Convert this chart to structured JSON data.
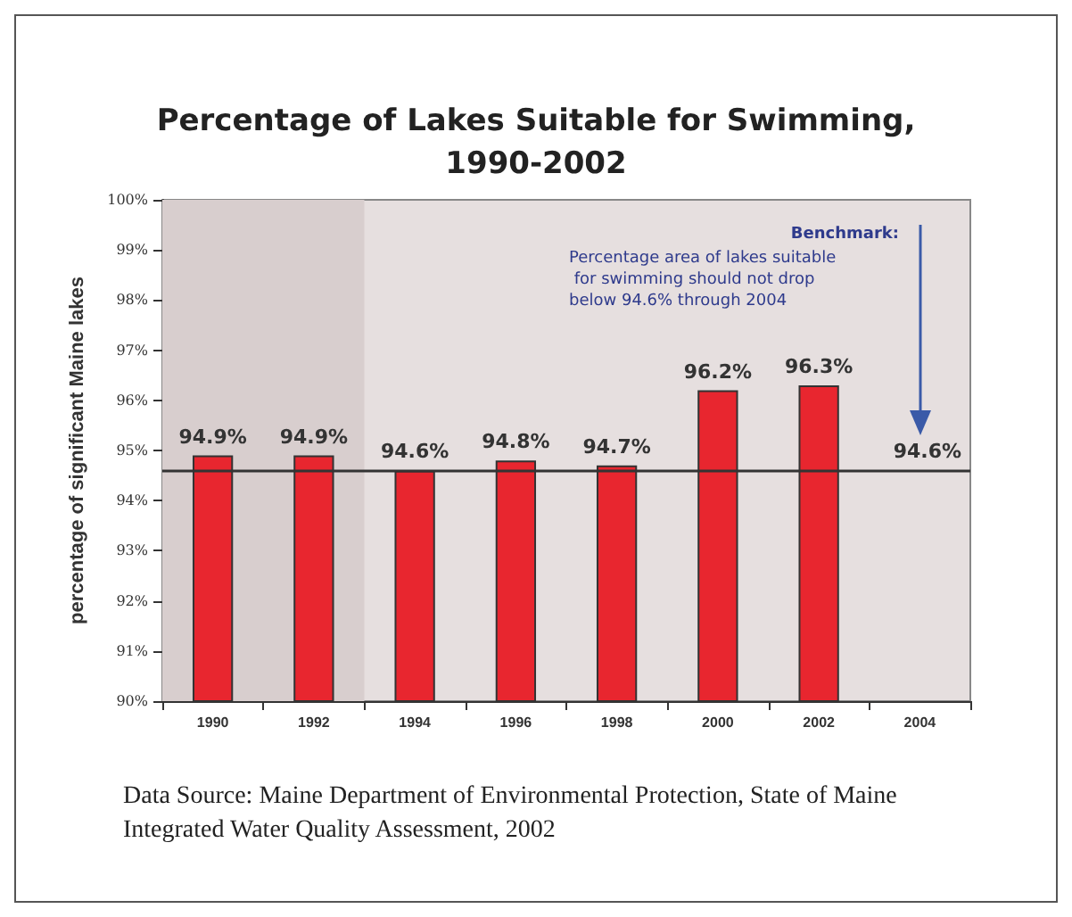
{
  "chart_data": {
    "type": "bar",
    "title": "Percentage of Lakes Suitable for Swimming,\n1990-2002",
    "ylabel": "percentage of significant Maine lakes",
    "categories": [
      "1990",
      "1992",
      "1994",
      "1996",
      "1998",
      "2000",
      "2002",
      "2004"
    ],
    "values": [
      94.9,
      94.9,
      94.6,
      94.8,
      94.7,
      96.2,
      96.3,
      null
    ],
    "value_labels": [
      "94.9%",
      "94.9%",
      "94.6%",
      "94.8%",
      "94.7%",
      "96.2%",
      "96.3%",
      null
    ],
    "color": "#e8262f",
    "ylim": [
      90,
      100
    ],
    "yticks": [
      {
        "value": 90,
        "label": "90%"
      },
      {
        "value": 91,
        "label": "91%"
      },
      {
        "value": 92,
        "label": "92%"
      },
      {
        "value": 93,
        "label": "93%"
      },
      {
        "value": 94,
        "label": "94%"
      },
      {
        "value": 95,
        "label": "95%"
      },
      {
        "value": 96,
        "label": "96%"
      },
      {
        "value": 97,
        "label": "97%"
      },
      {
        "value": 98,
        "label": "98%"
      },
      {
        "value": 99,
        "label": "99%"
      },
      {
        "value": 100,
        "label": "100%"
      }
    ],
    "ref_lines": [
      {
        "axis": "y",
        "value": 94.6,
        "label": "94.6%",
        "color": "#333333"
      }
    ],
    "bands": [
      {
        "axis": "x",
        "from": "1990",
        "to": "1992",
        "color": "#d8cece"
      }
    ],
    "annotations": [
      "Benchmark:",
      "Percentage area of lakes suitable for swimming should not drop below 94.6% through 2004",
      "Data Source: Maine Department of Environmental Protection, State of Maine Integrated Water Quality Assessment, 2002"
    ],
    "grid": false
  }
}
